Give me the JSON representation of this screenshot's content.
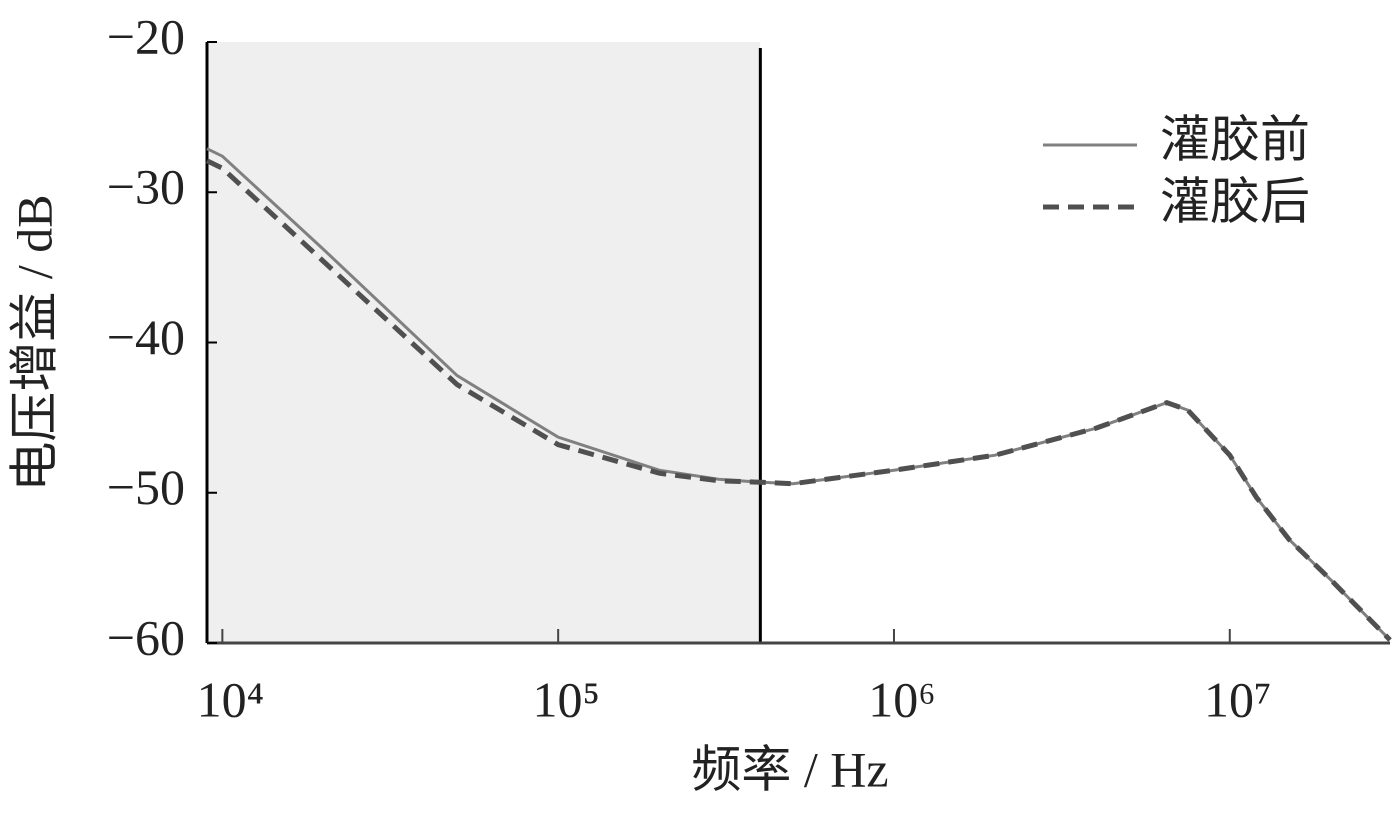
{
  "chart_data": {
    "type": "line",
    "x_label": "频率 / Hz",
    "y_label": "电压增益 / dB",
    "x": [
      9000,
      10000,
      20000,
      50000,
      100000,
      200000,
      300000,
      400000,
      500000,
      1000000,
      2000000,
      4000000,
      6500000,
      7500000,
      10000000,
      12000000,
      15000000,
      20000000,
      30000000
    ],
    "series": [
      {
        "name": "灌胶前",
        "color": "#808080",
        "dash": false,
        "values": [
          -27.1,
          -27.6,
          -33.8,
          -42.2,
          -46.3,
          -48.5,
          -49.1,
          -49.3,
          -49.4,
          -48.5,
          -47.5,
          -45.7,
          -44.0,
          -44.5,
          -47.5,
          -50.3,
          -53.1,
          -55.8,
          -59.8
        ]
      },
      {
        "name": "灌胶后",
        "color": "#505050",
        "dash": true,
        "values": [
          -27.9,
          -28.4,
          -34.6,
          -42.8,
          -46.8,
          -48.7,
          -49.2,
          -49.3,
          -49.4,
          -48.5,
          -47.5,
          -45.7,
          -44.0,
          -44.5,
          -47.5,
          -50.3,
          -53.1,
          -55.8,
          -59.8
        ]
      }
    ],
    "xlim": [
      9000,
      30000000
    ],
    "xscale": "log",
    "xticks": [
      {
        "value": 10000,
        "label": "10⁴"
      },
      {
        "value": 100000,
        "label": "10⁵"
      },
      {
        "value": 1000000,
        "label": "10⁶"
      },
      {
        "value": 10000000,
        "label": "10⁷"
      }
    ],
    "ylim": [
      -60,
      -20
    ],
    "yticks": [
      {
        "value": -60,
        "label": "−60"
      },
      {
        "value": -50,
        "label": "−50"
      },
      {
        "value": -40,
        "label": "−40"
      },
      {
        "value": -30,
        "label": "−30"
      },
      {
        "value": -20,
        "label": "−20"
      }
    ],
    "highlight": {
      "xlim": [
        9000,
        400000
      ],
      "color": "#efefef"
    },
    "legend": "upper right"
  }
}
